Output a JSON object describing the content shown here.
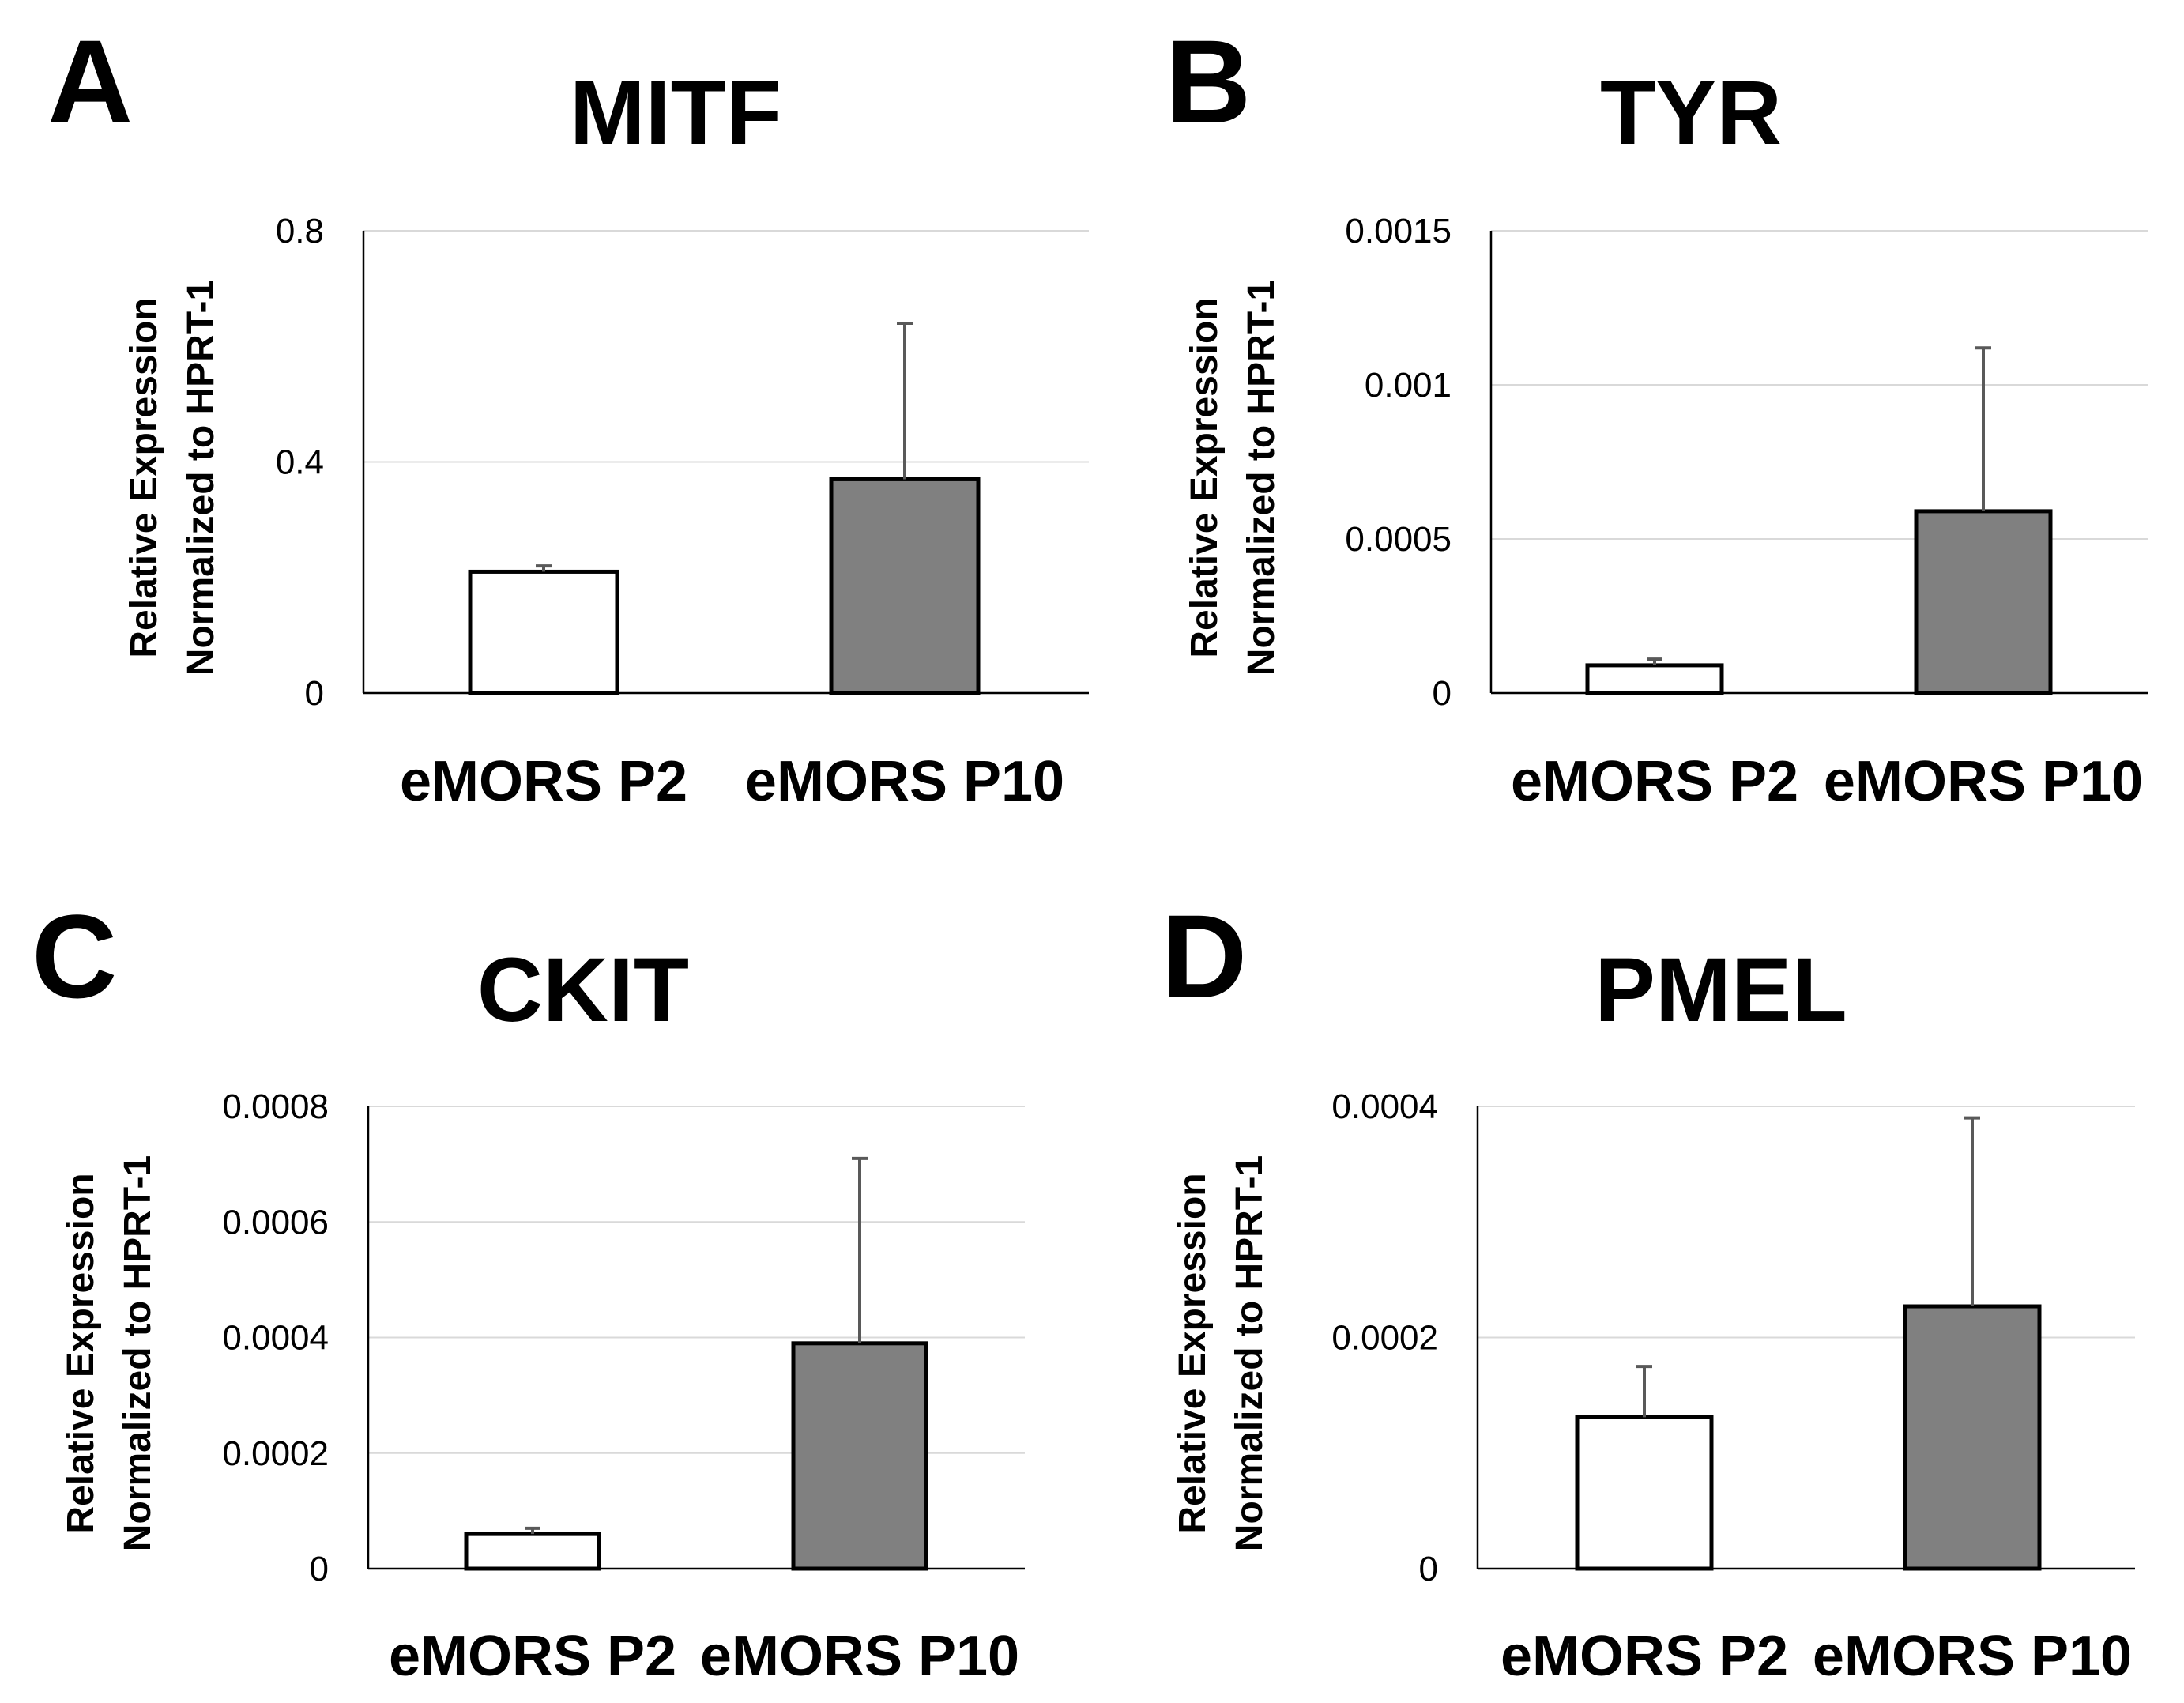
{
  "chart_data": [
    {
      "panel": "A",
      "type": "bar",
      "title": "MITF",
      "ylabel_lines": [
        "Relative Expression",
        "Normalized to HPRT-1"
      ],
      "categories": [
        "eMORS P2",
        "eMORS P10"
      ],
      "values": [
        0.21,
        0.37
      ],
      "errors": [
        0.01,
        0.27
      ],
      "bar_colors": [
        "#ffffff",
        "#808080"
      ],
      "ylim": [
        0,
        0.8
      ],
      "yticks": [
        0,
        0.4,
        0.8
      ],
      "ytick_labels": [
        "0",
        "0.4",
        "0.8"
      ],
      "grid": true
    },
    {
      "panel": "B",
      "type": "bar",
      "title": "TYR",
      "ylabel_lines": [
        "Relative Expression",
        "Normalized to HPRT-1"
      ],
      "categories": [
        "eMORS P2",
        "eMORS P10"
      ],
      "values": [
        9e-05,
        0.00059
      ],
      "errors": [
        2e-05,
        0.00053
      ],
      "bar_colors": [
        "#ffffff",
        "#808080"
      ],
      "ylim": [
        0,
        0.0015
      ],
      "yticks": [
        0,
        0.0005,
        0.001,
        0.0015
      ],
      "ytick_labels": [
        "0",
        "0.0005",
        "0.001",
        "0.0015"
      ],
      "grid": true
    },
    {
      "panel": "C",
      "type": "bar",
      "title": "CKIT",
      "ylabel_lines": [
        "Relative Expression",
        "Normalized to HPRT-1"
      ],
      "categories": [
        "eMORS P2",
        "eMORS P10"
      ],
      "values": [
        6e-05,
        0.00039
      ],
      "errors": [
        1e-05,
        0.00032
      ],
      "bar_colors": [
        "#ffffff",
        "#808080"
      ],
      "ylim": [
        0,
        0.0008
      ],
      "yticks": [
        0,
        0.0002,
        0.0004,
        0.0006,
        0.0008
      ],
      "ytick_labels": [
        "0",
        "0.0002",
        "0.0004",
        "0.0006",
        "0.0008"
      ],
      "grid": true
    },
    {
      "panel": "D",
      "type": "bar",
      "title": "PMEL",
      "ylabel_lines": [
        "Relative Expression",
        "Normalized to HPRT-1"
      ],
      "categories": [
        "eMORS P2",
        "eMORS P10"
      ],
      "values": [
        0.000131,
        0.000227
      ],
      "errors": [
        4.4e-05,
        0.000163
      ],
      "bar_colors": [
        "#ffffff",
        "#808080"
      ],
      "ylim": [
        0,
        0.0004
      ],
      "yticks": [
        0,
        0.0002,
        0.0004
      ],
      "ytick_labels": [
        "0",
        "0.0002",
        "0.0004"
      ],
      "grid": true
    }
  ]
}
